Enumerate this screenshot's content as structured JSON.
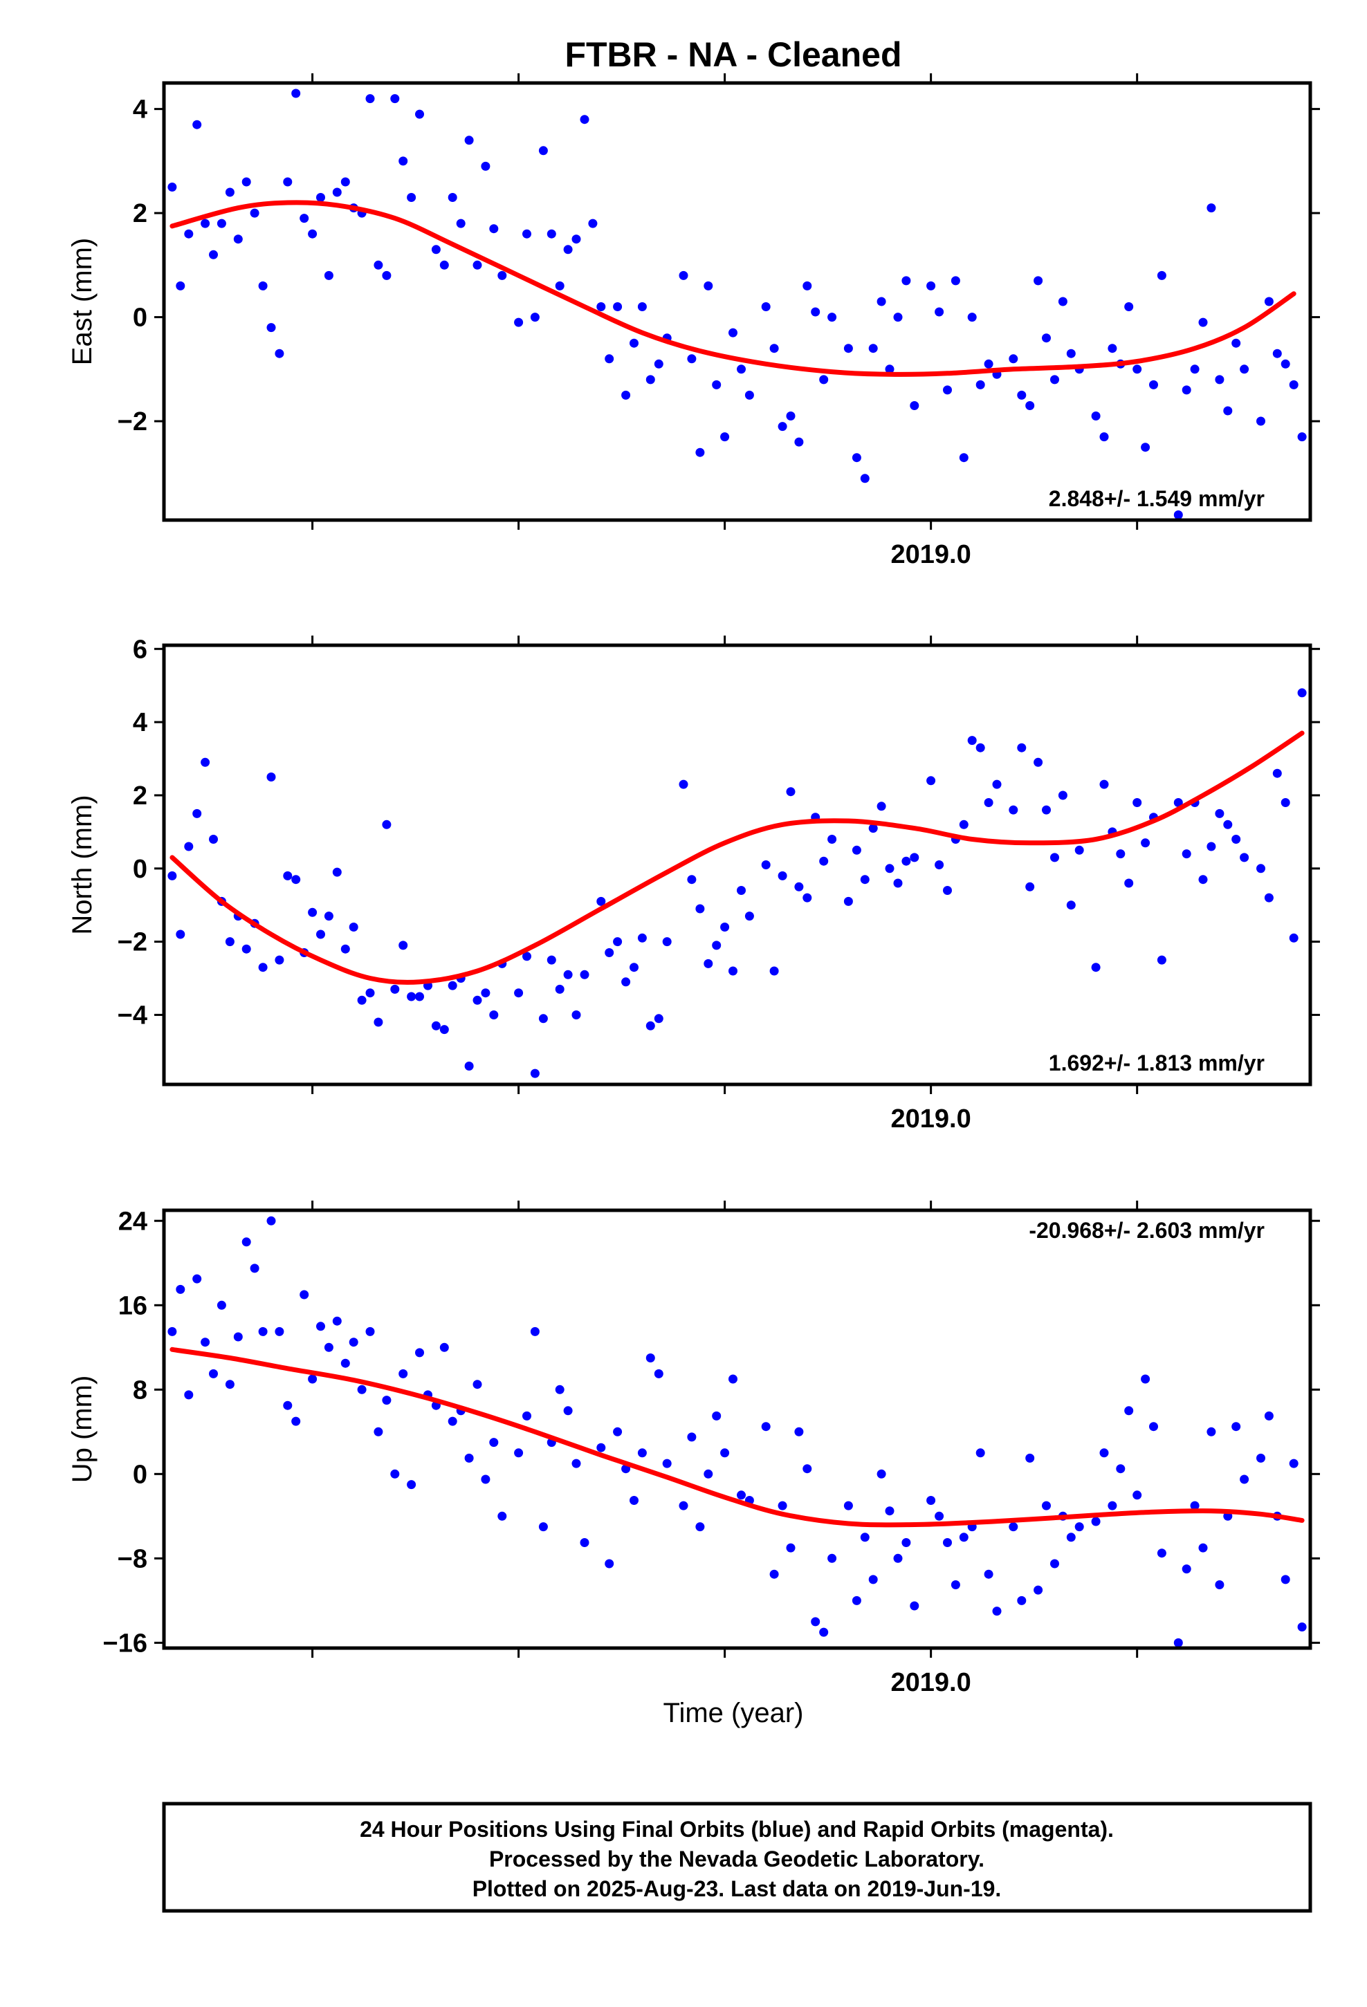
{
  "title": "FTBR  - NA - Cleaned",
  "colors": {
    "points": "#0000ff",
    "fit": "#ff0000",
    "frame": "#000000"
  },
  "chart_data": [
    {
      "type": "scatter",
      "ylabel": "East (mm)",
      "ylim": [
        -3.9,
        4.5
      ],
      "yticks": [
        -2,
        0,
        2,
        4
      ],
      "ytick_labels": [
        "−2",
        "0",
        "2",
        "4"
      ],
      "xlim": [
        2018.07,
        2019.46
      ],
      "xticks": [
        2018.0,
        2018.25,
        2018.5,
        2018.75,
        2019.0,
        2019.25,
        2019.5
      ],
      "xtick_labels": [
        {
          "at": 2019.0,
          "text": "2019.0"
        }
      ],
      "rate_label": "2.848+/- 1.549 mm/yr",
      "rate_position": "bottom-right",
      "fit_line": {
        "x": [
          2018.08,
          2018.16,
          2018.22,
          2018.28,
          2018.35,
          2018.42,
          2018.5,
          2018.58,
          2018.65,
          2018.72,
          2018.8,
          2018.88,
          2018.95,
          2019.02,
          2019.1,
          2019.18,
          2019.25,
          2019.32,
          2019.38,
          2019.44
        ],
        "y": [
          1.75,
          2.1,
          2.2,
          2.15,
          1.9,
          1.4,
          0.8,
          0.2,
          -0.3,
          -0.65,
          -0.9,
          -1.05,
          -1.1,
          -1.08,
          -1.0,
          -0.95,
          -0.85,
          -0.6,
          -0.2,
          0.45
        ]
      },
      "points": {
        "x": [
          2018.08,
          2018.09,
          2018.1,
          2018.11,
          2018.12,
          2018.13,
          2018.14,
          2018.15,
          2018.16,
          2018.17,
          2018.18,
          2018.19,
          2018.2,
          2018.21,
          2018.22,
          2018.23,
          2018.24,
          2018.25,
          2018.26,
          2018.27,
          2018.28,
          2018.29,
          2018.3,
          2018.31,
          2018.32,
          2018.33,
          2018.34,
          2018.35,
          2018.36,
          2018.37,
          2018.38,
          2018.4,
          2018.41,
          2018.42,
          2018.43,
          2018.44,
          2018.45,
          2018.46,
          2018.47,
          2018.48,
          2018.5,
          2018.51,
          2018.52,
          2018.53,
          2018.54,
          2018.55,
          2018.56,
          2018.57,
          2018.58,
          2018.59,
          2018.6,
          2018.61,
          2018.62,
          2018.63,
          2018.64,
          2018.65,
          2018.66,
          2018.67,
          2018.68,
          2018.7,
          2018.71,
          2018.72,
          2018.73,
          2018.74,
          2018.75,
          2018.76,
          2018.77,
          2018.78,
          2018.8,
          2018.81,
          2018.82,
          2018.83,
          2018.84,
          2018.85,
          2018.86,
          2018.87,
          2018.88,
          2018.9,
          2018.91,
          2018.92,
          2018.93,
          2018.94,
          2018.95,
          2018.96,
          2018.97,
          2018.98,
          2019.0,
          2019.01,
          2019.02,
          2019.03,
          2019.04,
          2019.05,
          2019.06,
          2019.07,
          2019.08,
          2019.1,
          2019.11,
          2019.12,
          2019.13,
          2019.14,
          2019.15,
          2019.16,
          2019.17,
          2019.18,
          2019.2,
          2019.21,
          2019.22,
          2019.23,
          2019.24,
          2019.25,
          2019.26,
          2019.27,
          2019.28,
          2019.3,
          2019.31,
          2019.32,
          2019.33,
          2019.34,
          2019.35,
          2019.36,
          2019.37,
          2019.38,
          2019.4,
          2019.41,
          2019.42,
          2019.43,
          2019.44,
          2019.45
        ],
        "y": [
          2.5,
          0.6,
          1.6,
          3.7,
          1.8,
          1.2,
          1.8,
          2.4,
          1.5,
          2.6,
          2.0,
          0.6,
          -0.2,
          -0.7,
          2.6,
          4.3,
          1.9,
          1.6,
          2.3,
          0.8,
          2.4,
          2.6,
          2.1,
          2.0,
          4.2,
          1.0,
          0.8,
          4.2,
          3.0,
          2.3,
          3.9,
          1.3,
          1.0,
          2.3,
          1.8,
          3.4,
          1.0,
          2.9,
          1.7,
          0.8,
          -0.1,
          1.6,
          0.0,
          3.2,
          1.6,
          0.6,
          1.3,
          1.5,
          3.8,
          1.8,
          0.2,
          -0.8,
          0.2,
          -1.5,
          -0.5,
          0.2,
          -1.2,
          -0.9,
          -0.4,
          0.8,
          -0.8,
          -2.6,
          0.6,
          -1.3,
          -2.3,
          -0.3,
          -1.0,
          -1.5,
          0.2,
          -0.6,
          -2.1,
          -1.9,
          -2.4,
          0.6,
          0.1,
          -1.2,
          0.0,
          -0.6,
          -2.7,
          -3.1,
          -0.6,
          0.3,
          -1.0,
          0.0,
          0.7,
          -1.7,
          0.6,
          0.1,
          -1.4,
          0.7,
          -2.7,
          0.0,
          -1.3,
          -0.9,
          -1.1,
          -0.8,
          -1.5,
          -1.7,
          0.7,
          -0.4,
          -1.2,
          0.3,
          -0.7,
          -1.0,
          -1.9,
          -2.3,
          -0.6,
          -0.9,
          0.2,
          -1.0,
          -2.5,
          -1.3,
          0.8,
          -3.8,
          -1.4,
          -1.0,
          -0.1,
          2.1,
          -1.2,
          -1.8,
          -0.5,
          -1.0,
          -2.0,
          0.3,
          -0.7,
          -0.9,
          -1.3,
          -2.3
        ],
        "note": "approximate readings"
      }
    },
    {
      "type": "scatter",
      "ylabel": "North (mm)",
      "ylim": [
        -5.9,
        6.1
      ],
      "yticks": [
        -4,
        -2,
        0,
        2,
        4,
        6
      ],
      "ytick_labels": [
        "−4",
        "−2",
        "0",
        "2",
        "4",
        "6"
      ],
      "xlim": [
        2018.07,
        2019.46
      ],
      "xticks": [
        2018.0,
        2018.25,
        2018.5,
        2018.75,
        2019.0,
        2019.25,
        2019.5
      ],
      "xtick_labels": [
        {
          "at": 2019.0,
          "text": "2019.0"
        }
      ],
      "rate_label": "1.692+/- 1.813 mm/yr",
      "rate_position": "bottom-right",
      "fit_line": {
        "x": [
          2018.08,
          2018.14,
          2018.2,
          2018.26,
          2018.32,
          2018.38,
          2018.45,
          2018.52,
          2018.6,
          2018.68,
          2018.75,
          2018.82,
          2018.9,
          2018.98,
          2019.05,
          2019.12,
          2019.2,
          2019.27,
          2019.33,
          2019.39,
          2019.45
        ],
        "y": [
          0.3,
          -0.9,
          -1.8,
          -2.5,
          -3.0,
          -3.1,
          -2.8,
          -2.1,
          -1.1,
          -0.1,
          0.7,
          1.2,
          1.3,
          1.1,
          0.8,
          0.7,
          0.8,
          1.3,
          2.0,
          2.8,
          3.7
        ]
      },
      "points": {
        "x": [
          2018.08,
          2018.09,
          2018.1,
          2018.11,
          2018.12,
          2018.13,
          2018.14,
          2018.15,
          2018.16,
          2018.17,
          2018.18,
          2018.19,
          2018.2,
          2018.21,
          2018.22,
          2018.23,
          2018.24,
          2018.25,
          2018.26,
          2018.27,
          2018.28,
          2018.29,
          2018.3,
          2018.31,
          2018.32,
          2018.33,
          2018.34,
          2018.35,
          2018.36,
          2018.37,
          2018.38,
          2018.39,
          2018.4,
          2018.41,
          2018.42,
          2018.43,
          2018.44,
          2018.45,
          2018.46,
          2018.47,
          2018.48,
          2018.5,
          2018.51,
          2018.52,
          2018.53,
          2018.54,
          2018.55,
          2018.56,
          2018.57,
          2018.58,
          2018.6,
          2018.61,
          2018.62,
          2018.63,
          2018.64,
          2018.65,
          2018.66,
          2018.67,
          2018.68,
          2018.7,
          2018.71,
          2018.72,
          2018.73,
          2018.74,
          2018.75,
          2018.76,
          2018.77,
          2018.78,
          2018.8,
          2018.81,
          2018.82,
          2018.83,
          2018.84,
          2018.85,
          2018.86,
          2018.87,
          2018.88,
          2018.9,
          2018.91,
          2018.92,
          2018.93,
          2018.94,
          2018.95,
          2018.96,
          2018.97,
          2018.98,
          2019.0,
          2019.01,
          2019.02,
          2019.03,
          2019.04,
          2019.05,
          2019.06,
          2019.07,
          2019.08,
          2019.1,
          2019.11,
          2019.12,
          2019.13,
          2019.14,
          2019.15,
          2019.16,
          2019.17,
          2019.18,
          2019.2,
          2019.21,
          2019.22,
          2019.23,
          2019.24,
          2019.25,
          2019.26,
          2019.27,
          2019.28,
          2019.3,
          2019.31,
          2019.32,
          2019.33,
          2019.34,
          2019.35,
          2019.36,
          2019.37,
          2019.38,
          2019.4,
          2019.41,
          2019.42,
          2019.43,
          2019.44,
          2019.45
        ],
        "y": [
          -0.2,
          -1.8,
          0.6,
          1.5,
          2.9,
          0.8,
          -0.9,
          -2.0,
          -1.3,
          -2.2,
          -1.5,
          -2.7,
          2.5,
          -2.5,
          -0.2,
          -0.3,
          -2.3,
          -1.2,
          -1.8,
          -1.3,
          -0.1,
          -2.2,
          -1.6,
          -3.6,
          -3.4,
          -4.2,
          1.2,
          -3.3,
          -2.1,
          -3.5,
          -3.5,
          -3.2,
          -4.3,
          -4.4,
          -3.2,
          -3.0,
          -5.4,
          -3.6,
          -3.4,
          -4.0,
          -2.6,
          -3.4,
          -2.4,
          -5.6,
          -4.1,
          -2.5,
          -3.3,
          -2.9,
          -4.0,
          -2.9,
          -0.9,
          -2.3,
          -2.0,
          -3.1,
          -2.7,
          -1.9,
          -4.3,
          -4.1,
          -2.0,
          2.3,
          -0.3,
          -1.1,
          -2.6,
          -2.1,
          -1.6,
          -2.8,
          -0.6,
          -1.3,
          0.1,
          -2.8,
          -0.2,
          2.1,
          -0.5,
          -0.8,
          1.4,
          0.2,
          0.8,
          -0.9,
          0.5,
          -0.3,
          1.1,
          1.7,
          0.0,
          -0.4,
          0.2,
          0.3,
          2.4,
          0.1,
          -0.6,
          0.8,
          1.2,
          3.5,
          3.3,
          1.8,
          2.3,
          1.6,
          3.3,
          -0.5,
          2.9,
          1.6,
          0.3,
          2.0,
          -1.0,
          0.5,
          -2.7,
          2.3,
          1.0,
          0.4,
          -0.4,
          1.8,
          0.7,
          1.4,
          -2.5,
          1.8,
          0.4,
          1.8,
          -0.3,
          0.6,
          1.5,
          1.2,
          0.8,
          0.3,
          0.0,
          -0.8,
          2.6,
          1.8,
          -1.9,
          4.8
        ],
        "note": "approximate readings"
      }
    },
    {
      "type": "scatter",
      "ylabel": "Up (mm)",
      "xlabel": "Time (year)",
      "ylim": [
        -16.5,
        25.0
      ],
      "yticks": [
        -16,
        -8,
        0,
        8,
        16,
        24
      ],
      "ytick_labels": [
        "−16",
        "−8",
        "0",
        "8",
        "16",
        "24"
      ],
      "xlim": [
        2018.07,
        2019.46
      ],
      "xticks": [
        2018.0,
        2018.25,
        2018.5,
        2018.75,
        2019.0,
        2019.25,
        2019.5
      ],
      "xtick_labels": [
        {
          "at": 2019.0,
          "text": "2019.0"
        }
      ],
      "rate_label": "-20.968+/- 2.603 mm/yr",
      "rate_position": "top-right",
      "fit_line": {
        "x": [
          2018.08,
          2018.15,
          2018.22,
          2018.3,
          2018.38,
          2018.45,
          2018.52,
          2018.6,
          2018.68,
          2018.75,
          2018.82,
          2018.9,
          2018.98,
          2019.05,
          2019.12,
          2019.2,
          2019.27,
          2019.34,
          2019.4,
          2019.45
        ],
        "y": [
          11.8,
          11.0,
          10.0,
          8.9,
          7.4,
          5.8,
          4.0,
          1.8,
          -0.3,
          -2.2,
          -3.8,
          -4.7,
          -4.8,
          -4.6,
          -4.3,
          -3.9,
          -3.6,
          -3.5,
          -3.8,
          -4.4
        ]
      },
      "points": {
        "x": [
          2018.08,
          2018.09,
          2018.1,
          2018.11,
          2018.12,
          2018.13,
          2018.14,
          2018.15,
          2018.16,
          2018.17,
          2018.18,
          2018.19,
          2018.2,
          2018.21,
          2018.22,
          2018.23,
          2018.24,
          2018.25,
          2018.26,
          2018.27,
          2018.28,
          2018.29,
          2018.3,
          2018.31,
          2018.32,
          2018.33,
          2018.34,
          2018.35,
          2018.36,
          2018.37,
          2018.38,
          2018.39,
          2018.4,
          2018.41,
          2018.42,
          2018.43,
          2018.44,
          2018.45,
          2018.46,
          2018.47,
          2018.48,
          2018.5,
          2018.51,
          2018.52,
          2018.53,
          2018.54,
          2018.55,
          2018.56,
          2018.57,
          2018.58,
          2018.6,
          2018.61,
          2018.62,
          2018.63,
          2018.64,
          2018.65,
          2018.66,
          2018.67,
          2018.68,
          2018.7,
          2018.71,
          2018.72,
          2018.73,
          2018.74,
          2018.75,
          2018.76,
          2018.77,
          2018.78,
          2018.8,
          2018.81,
          2018.82,
          2018.83,
          2018.84,
          2018.85,
          2018.86,
          2018.87,
          2018.88,
          2018.9,
          2018.91,
          2018.92,
          2018.93,
          2018.94,
          2018.95,
          2018.96,
          2018.97,
          2018.98,
          2019.0,
          2019.01,
          2019.02,
          2019.03,
          2019.04,
          2019.05,
          2019.06,
          2019.07,
          2019.08,
          2019.1,
          2019.11,
          2019.12,
          2019.13,
          2019.14,
          2019.15,
          2019.16,
          2019.17,
          2019.18,
          2019.2,
          2019.21,
          2019.22,
          2019.23,
          2019.24,
          2019.25,
          2019.26,
          2019.27,
          2019.28,
          2019.3,
          2019.31,
          2019.32,
          2019.33,
          2019.34,
          2019.35,
          2019.36,
          2019.37,
          2019.38,
          2019.4,
          2019.41,
          2019.42,
          2019.43,
          2019.44,
          2019.45
        ],
        "y": [
          13.5,
          17.5,
          7.5,
          18.5,
          12.5,
          9.5,
          16.0,
          8.5,
          13.0,
          22.0,
          19.5,
          13.5,
          24.0,
          13.5,
          6.5,
          5.0,
          17.0,
          9.0,
          14.0,
          12.0,
          14.5,
          10.5,
          12.5,
          8.0,
          13.5,
          4.0,
          7.0,
          0.0,
          9.5,
          -1.0,
          11.5,
          7.5,
          6.5,
          12.0,
          5.0,
          6.0,
          1.5,
          8.5,
          -0.5,
          3.0,
          -4.0,
          2.0,
          5.5,
          13.5,
          -5.0,
          3.0,
          8.0,
          6.0,
          1.0,
          -6.5,
          2.5,
          -8.5,
          4.0,
          0.5,
          -2.5,
          2.0,
          11.0,
          9.5,
          1.0,
          -3.0,
          3.5,
          -5.0,
          0.0,
          5.5,
          2.0,
          9.0,
          -2.0,
          -2.5,
          4.5,
          -9.5,
          -3.0,
          -7.0,
          4.0,
          0.5,
          -14.0,
          -15.0,
          -8.0,
          -3.0,
          -12.0,
          -6.0,
          -10.0,
          0.0,
          -3.5,
          -8.0,
          -6.5,
          -12.5,
          -2.5,
          -4.0,
          -6.5,
          -10.5,
          -6.0,
          -5.0,
          2.0,
          -9.5,
          -13.0,
          -5.0,
          -12.0,
          1.5,
          -11.0,
          -3.0,
          -8.5,
          -4.0,
          -6.0,
          -5.0,
          -4.5,
          2.0,
          -3.0,
          0.5,
          6.0,
          -2.0,
          9.0,
          4.5,
          -7.5,
          -16.0,
          -9.0,
          -3.0,
          -7.0,
          4.0,
          -10.5,
          -4.0,
          4.5,
          -0.5,
          1.5,
          5.5,
          -4.0,
          -10.0,
          1.0,
          -14.5
        ],
        "note": "approximate readings"
      }
    }
  ],
  "footer": {
    "line1": "24 Hour Positions Using Final Orbits (blue) and Rapid Orbits (magenta).",
    "line2": "Processed by the Nevada Geodetic Laboratory.",
    "line3": "Plotted on 2025-Aug-23. Last data on 2019-Jun-19."
  }
}
